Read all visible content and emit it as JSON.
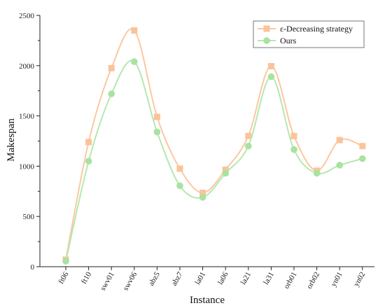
{
  "chart_data": {
    "type": "line",
    "xlabel": "Instance",
    "ylabel": "Makespan",
    "ylim": [
      0,
      2500
    ],
    "yticks": [
      0,
      500,
      1000,
      1500,
      2000,
      2500
    ],
    "categories": [
      "ft06",
      "ft10",
      "swv01",
      "swv06",
      "abz5",
      "abz7",
      "la01",
      "la06",
      "la21",
      "la31",
      "orb01",
      "orb02",
      "yn01",
      "yn02"
    ],
    "series": [
      {
        "name": "ε-Decreasing strategy",
        "color": "#fbc8a0",
        "marker_color": "#fac39a",
        "marker": "square",
        "values": [
          70,
          1240,
          1975,
          2350,
          1490,
          975,
          735,
          965,
          1300,
          1995,
          1300,
          955,
          1260,
          1200
        ]
      },
      {
        "name": "Ours",
        "color": "#b6e7b0",
        "marker_color": "#a8e3a0",
        "marker": "circle",
        "values": [
          55,
          1050,
          1720,
          2040,
          1340,
          805,
          690,
          930,
          1200,
          1890,
          1165,
          930,
          1010,
          1075
        ]
      }
    ],
    "legend_position": "top-right",
    "grid": false
  }
}
